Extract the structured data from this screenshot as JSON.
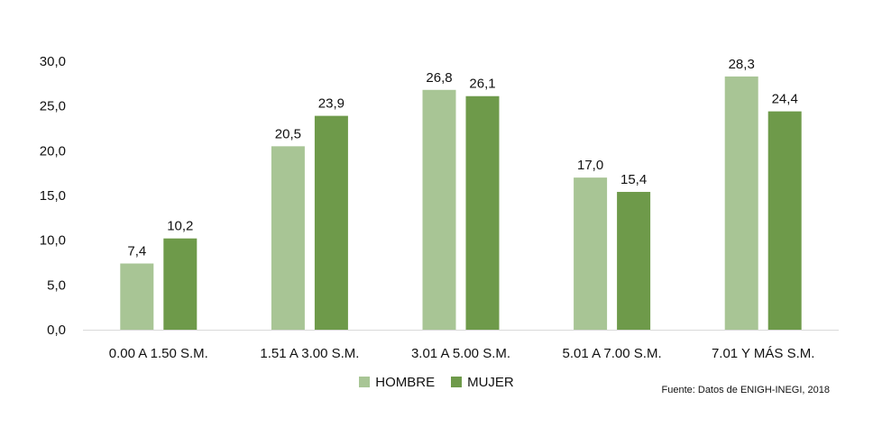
{
  "chart_data": {
    "type": "bar",
    "categories": [
      "0.00 A 1.50 S.M.",
      "1.51 A 3.00 S.M.",
      "3.01 A 5.00 S.M.",
      "5.01 A 7.00 S.M.",
      "7.01 Y MÁS S.M."
    ],
    "series": [
      {
        "name": "HOMBRE",
        "values": [
          7.4,
          20.5,
          26.8,
          17.0,
          28.3
        ],
        "labels": [
          "7,4",
          "20,5",
          "26,8",
          "17,0",
          "28,3"
        ],
        "color": "#a8c595"
      },
      {
        "name": "MUJER",
        "values": [
          10.2,
          23.9,
          26.1,
          15.4,
          24.4
        ],
        "labels": [
          "10,2",
          "23,9",
          "26,1",
          "15,4",
          "24,4"
        ],
        "color": "#6e9a4a"
      }
    ],
    "ylim": [
      0,
      30
    ],
    "yticks": [
      "0,0",
      "5,0",
      "10,0",
      "15,0",
      "20,0",
      "25,0",
      "30,0"
    ],
    "grid": false,
    "legend_position": "bottom"
  },
  "legend": {
    "hombre_label": "HOMBRE",
    "mujer_label": "MUJER",
    "hombre_color": "#a8c595",
    "mujer_color": "#6e9a4a"
  },
  "footer": {
    "source": "Fuente: Datos de ENIGH-INEGI, 2018"
  }
}
